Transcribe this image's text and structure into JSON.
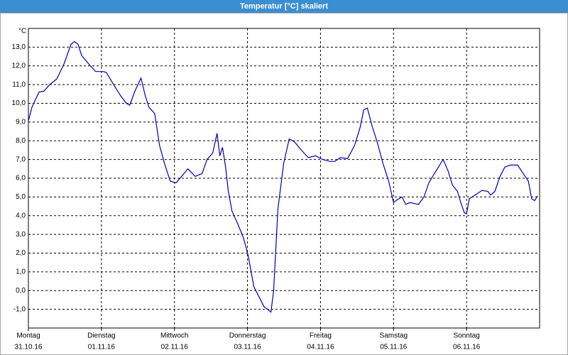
{
  "chart_data": {
    "type": "line",
    "title": "Temperatur [°C] skaliert",
    "unit_label": "°C",
    "color": "#0000b0",
    "grid": true,
    "xlim": [
      0,
      168
    ],
    "ylim": [
      -2,
      14
    ],
    "yticks": [
      {
        "value": -1,
        "label": "-1,0"
      },
      {
        "value": 0,
        "label": "0,0"
      },
      {
        "value": 1,
        "label": "1,0"
      },
      {
        "value": 2,
        "label": "2,0"
      },
      {
        "value": 3,
        "label": "3,0"
      },
      {
        "value": 4,
        "label": "4,0"
      },
      {
        "value": 5,
        "label": "5,0"
      },
      {
        "value": 6,
        "label": "6,0"
      },
      {
        "value": 7,
        "label": "7,0"
      },
      {
        "value": 8,
        "label": "8,0"
      },
      {
        "value": 9,
        "label": "9,0"
      },
      {
        "value": 10,
        "label": "10,0"
      },
      {
        "value": 11,
        "label": "11,0"
      },
      {
        "value": 12,
        "label": "12,0"
      },
      {
        "value": 13,
        "label": "13,0"
      }
    ],
    "xticks": [
      {
        "value": 0,
        "label": "Montag"
      },
      {
        "value": 24,
        "label": "Dienstag"
      },
      {
        "value": 48,
        "label": "Mittwoch"
      },
      {
        "value": 72,
        "label": "Donnerstag"
      },
      {
        "value": 96,
        "label": "Freitag"
      },
      {
        "value": 120,
        "label": "Samstag"
      },
      {
        "value": 144,
        "label": "Sonntag"
      }
    ],
    "xtick_dates": [
      "31.10.16",
      "01.11.16",
      "02.11.16",
      "03.11.16",
      "04.11.16",
      "05.11.16",
      "06.11.16"
    ],
    "x": [
      0,
      1.2,
      2.3,
      3.5,
      5.1,
      7.0,
      9.3,
      11.7,
      14.0,
      15.1,
      16.3,
      17.5,
      19.8,
      22.1,
      24.5,
      25.6,
      28.0,
      30.3,
      32.2,
      33.3,
      35.0,
      37.0,
      38.4,
      39.6,
      41.5,
      43.1,
      44.7,
      46.6,
      48.5,
      50.1,
      52.4,
      54.8,
      57.1,
      58.7,
      60.6,
      62.0,
      62.9,
      63.8,
      64.8,
      65.7,
      66.9,
      68.7,
      70.6,
      72.2,
      74.1,
      75.7,
      77.4,
      79.7,
      80.6,
      82.0,
      83.9,
      85.7,
      87.4,
      89.7,
      92.0,
      94.4,
      96.7,
      99.0,
      100.7,
      102.5,
      104.9,
      107.2,
      109.0,
      110.2,
      111.4,
      113.0,
      114.6,
      116.5,
      118.4,
      120.0,
      121.2,
      122.8,
      124.0,
      125.4,
      128.2,
      130.0,
      131.6,
      134.0,
      136.3,
      137.9,
      139.3,
      141.0,
      142.1,
      143.3,
      144.0,
      144.9,
      146.8,
      149.1,
      151.0,
      151.9,
      153.3,
      155.0,
      156.6,
      158.4,
      160.8,
      162.6,
      164.3,
      165.4,
      166.4,
      167.3
    ],
    "values": [
      9.07,
      9.8,
      10.2,
      10.6,
      10.65,
      11.0,
      11.3,
      12.1,
      13.15,
      13.3,
      13.15,
      12.55,
      12.1,
      11.7,
      11.7,
      11.65,
      11.0,
      10.4,
      10.0,
      9.9,
      10.65,
      11.35,
      10.4,
      9.8,
      9.45,
      7.75,
      6.8,
      5.85,
      5.75,
      6.05,
      6.5,
      6.1,
      6.25,
      7.0,
      7.35,
      8.4,
      7.2,
      7.65,
      6.6,
      5.3,
      4.25,
      3.6,
      2.85,
      1.9,
      0.2,
      -0.3,
      -0.85,
      -1.15,
      0.0,
      4.35,
      6.8,
      8.1,
      7.95,
      7.5,
      7.1,
      7.2,
      7.0,
      6.9,
      6.9,
      7.1,
      7.05,
      7.75,
      8.7,
      9.65,
      9.75,
      8.75,
      7.95,
      6.8,
      5.85,
      4.7,
      4.85,
      5.0,
      4.6,
      4.7,
      4.6,
      5.0,
      5.75,
      6.4,
      7.0,
      6.4,
      5.65,
      5.3,
      4.7,
      4.15,
      4.1,
      4.9,
      5.1,
      5.35,
      5.3,
      5.1,
      5.3,
      6.1,
      6.6,
      6.7,
      6.7,
      6.25,
      5.85,
      4.9,
      4.8,
      5.05
    ]
  }
}
